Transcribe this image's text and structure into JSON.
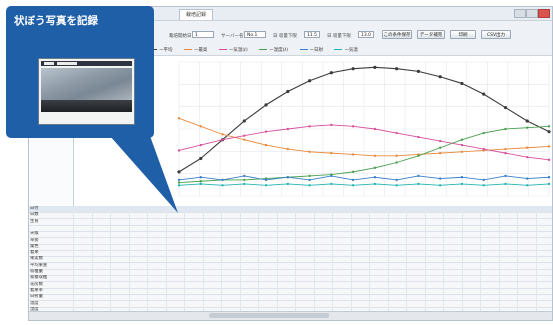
{
  "window": {
    "tabs": [
      "栽培記録"
    ],
    "toolbar": {
      "fields": [
        {
          "label": "栽培開始日",
          "value": "1"
        },
        {
          "label": "サーバー名",
          "value": "No.1"
        },
        {
          "label": "日 収量下限",
          "value": "11.5"
        },
        {
          "label": "日 収量下限",
          "value": "13.0"
        }
      ],
      "buttons": [
        "この条件保存",
        "データ補完",
        "印刷",
        "CSV出力"
      ]
    }
  },
  "legend": {
    "items": [
      {
        "label": "ー平均",
        "color": "#3c3c3c"
      },
      {
        "label": "ー最高",
        "color": "#e98a3a"
      },
      {
        "label": "ー気温(ℓ)",
        "color": "#d94f9b"
      },
      {
        "label": "ー湿度(ℓ)",
        "color": "#4aa04f"
      },
      {
        "label": "ー日射",
        "color": "#3a7fc9"
      },
      {
        "label": "ー気温",
        "color": "#23b3b3"
      }
    ]
  },
  "table": {
    "row_labels": [
      "日付",
      "日数",
      "生育",
      "",
      "天候",
      "草勢",
      "葉色",
      "着果",
      "果実数",
      "平均果重",
      "収穫量",
      "累積収穫",
      "花房数",
      "着果率",
      "日射量",
      "温度",
      "湿度"
    ]
  },
  "callout": {
    "title": "状ぼう写真を記録"
  },
  "chart_data": {
    "type": "line",
    "title": "",
    "xlabel": "",
    "ylabel": "",
    "grid": true,
    "series": [
      {
        "color": "#3c3c3c",
        "values": [
          18,
          28,
          42,
          56,
          68,
          78,
          86,
          92,
          95,
          96,
          95,
          93,
          89,
          84,
          76,
          66,
          56,
          48
        ]
      },
      {
        "color": "#e98a3a",
        "values": [
          58,
          52,
          46,
          42,
          38,
          35,
          33,
          32,
          31,
          30,
          30,
          31,
          32,
          33,
          34,
          35,
          36,
          37
        ]
      },
      {
        "color": "#d94f9b",
        "values": [
          34,
          38,
          42,
          45,
          48,
          50,
          52,
          53,
          52,
          50,
          47,
          44,
          41,
          38,
          35,
          32,
          29,
          27
        ]
      },
      {
        "color": "#4aa04f",
        "values": [
          10,
          11,
          12,
          12,
          13,
          14,
          15,
          16,
          18,
          21,
          25,
          30,
          36,
          42,
          47,
          50,
          51,
          52
        ]
      },
      {
        "color": "#3a7fc9",
        "values": [
          12,
          14,
          12,
          15,
          12,
          14,
          12,
          15,
          12,
          14,
          12,
          15,
          13,
          14,
          12,
          15,
          13,
          14
        ]
      },
      {
        "color": "#23b3b3",
        "values": [
          8,
          9,
          8,
          9,
          8,
          9,
          8,
          9,
          8,
          9,
          8,
          9,
          8,
          9,
          8,
          9,
          8,
          9
        ]
      }
    ]
  }
}
